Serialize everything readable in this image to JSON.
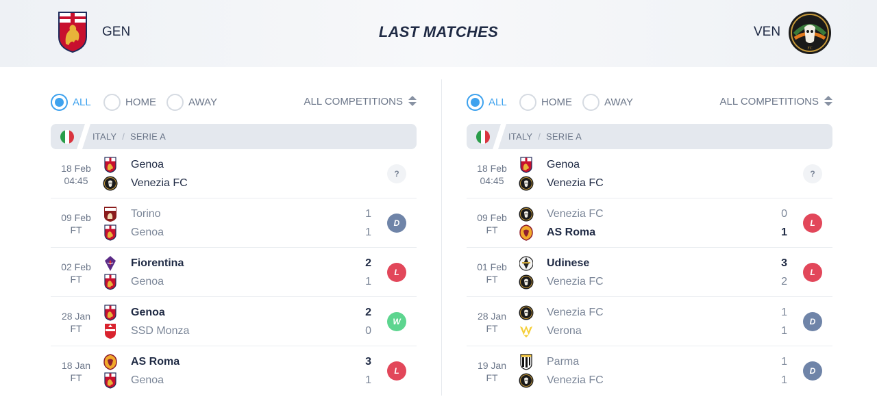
{
  "header": {
    "title": "LAST MATCHES",
    "home_abbr": "GEN",
    "away_abbr": "VEN",
    "home_logo_text": "",
    "away_logo_text": "VENEZIA FC"
  },
  "panels": [
    {
      "filters": {
        "all": "ALL",
        "home": "HOME",
        "away": "AWAY",
        "competitions": "ALL COMPETITIONS",
        "active": "all"
      },
      "league": {
        "country": "ITALY",
        "competition": "SERIE A"
      },
      "matches": [
        {
          "date": "18 Feb",
          "time": "04:45",
          "home": {
            "name": "Genoa",
            "crest": "genoa",
            "score": "",
            "style": "neutral"
          },
          "away": {
            "name": "Venezia FC",
            "crest": "venezia",
            "score": "",
            "style": "neutral"
          },
          "result": "?"
        },
        {
          "date": "09 Feb",
          "time": "FT",
          "home": {
            "name": "Torino",
            "crest": "torino",
            "score": "1",
            "style": "plain"
          },
          "away": {
            "name": "Genoa",
            "crest": "genoa",
            "score": "1",
            "style": "plain"
          },
          "result": "D"
        },
        {
          "date": "02 Feb",
          "time": "FT",
          "home": {
            "name": "Fiorentina",
            "crest": "fiorentina",
            "score": "2",
            "style": "win"
          },
          "away": {
            "name": "Genoa",
            "crest": "genoa",
            "score": "1",
            "style": "plain"
          },
          "result": "L"
        },
        {
          "date": "28 Jan",
          "time": "FT",
          "home": {
            "name": "Genoa",
            "crest": "genoa",
            "score": "2",
            "style": "win"
          },
          "away": {
            "name": "SSD Monza",
            "crest": "monza",
            "score": "0",
            "style": "plain"
          },
          "result": "W"
        },
        {
          "date": "18 Jan",
          "time": "FT",
          "home": {
            "name": "AS Roma",
            "crest": "roma",
            "score": "3",
            "style": "win"
          },
          "away": {
            "name": "Genoa",
            "crest": "genoa",
            "score": "1",
            "style": "plain"
          },
          "result": "L"
        }
      ]
    },
    {
      "filters": {
        "all": "ALL",
        "home": "HOME",
        "away": "AWAY",
        "competitions": "ALL COMPETITIONS",
        "active": "all"
      },
      "league": {
        "country": "ITALY",
        "competition": "SERIE A"
      },
      "matches": [
        {
          "date": "18 Feb",
          "time": "04:45",
          "home": {
            "name": "Genoa",
            "crest": "genoa",
            "score": "",
            "style": "neutral"
          },
          "away": {
            "name": "Venezia FC",
            "crest": "venezia",
            "score": "",
            "style": "neutral"
          },
          "result": "?"
        },
        {
          "date": "09 Feb",
          "time": "FT",
          "home": {
            "name": "Venezia FC",
            "crest": "venezia",
            "score": "0",
            "style": "plain"
          },
          "away": {
            "name": "AS Roma",
            "crest": "roma",
            "score": "1",
            "style": "win"
          },
          "result": "L"
        },
        {
          "date": "01 Feb",
          "time": "FT",
          "home": {
            "name": "Udinese",
            "crest": "udinese",
            "score": "3",
            "style": "win"
          },
          "away": {
            "name": "Venezia FC",
            "crest": "venezia",
            "score": "2",
            "style": "plain"
          },
          "result": "L"
        },
        {
          "date": "28 Jan",
          "time": "FT",
          "home": {
            "name": "Venezia FC",
            "crest": "venezia",
            "score": "1",
            "style": "plain"
          },
          "away": {
            "name": "Verona",
            "crest": "verona",
            "score": "1",
            "style": "plain"
          },
          "result": "D"
        },
        {
          "date": "19 Jan",
          "time": "FT",
          "home": {
            "name": "Parma",
            "crest": "parma",
            "score": "1",
            "style": "plain"
          },
          "away": {
            "name": "Venezia FC",
            "crest": "venezia",
            "score": "1",
            "style": "plain"
          },
          "result": "D"
        }
      ]
    }
  ],
  "colors": {
    "accent": "#3ea2ee",
    "loss": "#e2475a",
    "draw": "#6f84a8",
    "win": "#5dd58f",
    "text_dark": "#1f2a44",
    "text_muted": "#7a8597"
  }
}
